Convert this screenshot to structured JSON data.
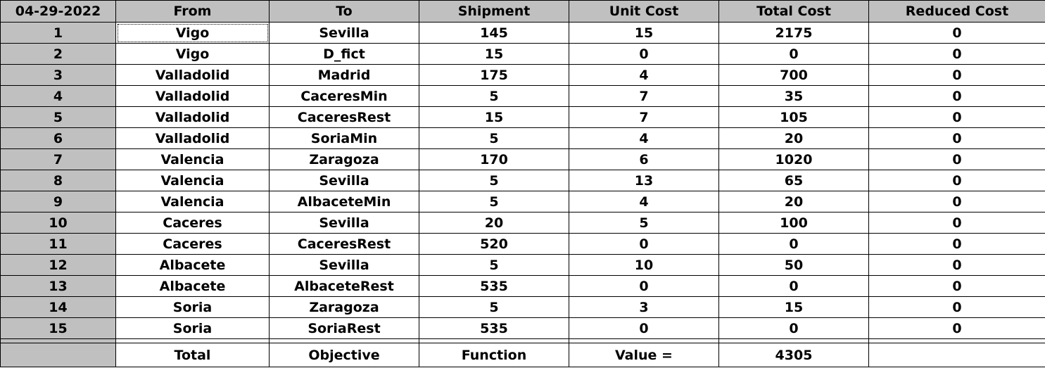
{
  "header": {
    "date": "04-29-2022",
    "columns": [
      "From",
      "To",
      "Shipment",
      "Unit Cost",
      "Total Cost",
      "Reduced Cost"
    ]
  },
  "rows": [
    {
      "num": "1",
      "from": "Vigo",
      "to": "Sevilla",
      "shipment": "145",
      "unit_cost": "15",
      "total_cost": "2175",
      "reduced_cost": "0"
    },
    {
      "num": "2",
      "from": "Vigo",
      "to": "D_fict",
      "shipment": "15",
      "unit_cost": "0",
      "total_cost": "0",
      "reduced_cost": "0"
    },
    {
      "num": "3",
      "from": "Valladolid",
      "to": "Madrid",
      "shipment": "175",
      "unit_cost": "4",
      "total_cost": "700",
      "reduced_cost": "0"
    },
    {
      "num": "4",
      "from": "Valladolid",
      "to": "CaceresMin",
      "shipment": "5",
      "unit_cost": "7",
      "total_cost": "35",
      "reduced_cost": "0"
    },
    {
      "num": "5",
      "from": "Valladolid",
      "to": "CaceresRest",
      "shipment": "15",
      "unit_cost": "7",
      "total_cost": "105",
      "reduced_cost": "0"
    },
    {
      "num": "6",
      "from": "Valladolid",
      "to": "SoriaMin",
      "shipment": "5",
      "unit_cost": "4",
      "total_cost": "20",
      "reduced_cost": "0"
    },
    {
      "num": "7",
      "from": "Valencia",
      "to": "Zaragoza",
      "shipment": "170",
      "unit_cost": "6",
      "total_cost": "1020",
      "reduced_cost": "0"
    },
    {
      "num": "8",
      "from": "Valencia",
      "to": "Sevilla",
      "shipment": "5",
      "unit_cost": "13",
      "total_cost": "65",
      "reduced_cost": "0"
    },
    {
      "num": "9",
      "from": "Valencia",
      "to": "AlbaceteMin",
      "shipment": "5",
      "unit_cost": "4",
      "total_cost": "20",
      "reduced_cost": "0"
    },
    {
      "num": "10",
      "from": "Caceres",
      "to": "Sevilla",
      "shipment": "20",
      "unit_cost": "5",
      "total_cost": "100",
      "reduced_cost": "0"
    },
    {
      "num": "11",
      "from": "Caceres",
      "to": "CaceresRest",
      "shipment": "520",
      "unit_cost": "0",
      "total_cost": "0",
      "reduced_cost": "0"
    },
    {
      "num": "12",
      "from": "Albacete",
      "to": "Sevilla",
      "shipment": "5",
      "unit_cost": "10",
      "total_cost": "50",
      "reduced_cost": "0"
    },
    {
      "num": "13",
      "from": "Albacete",
      "to": "AlbaceteRest",
      "shipment": "535",
      "unit_cost": "0",
      "total_cost": "0",
      "reduced_cost": "0"
    },
    {
      "num": "14",
      "from": "Soria",
      "to": "Zaragoza",
      "shipment": "5",
      "unit_cost": "3",
      "total_cost": "15",
      "reduced_cost": "0"
    },
    {
      "num": "15",
      "from": "Soria",
      "to": "SoriaRest",
      "shipment": "535",
      "unit_cost": "0",
      "total_cost": "0",
      "reduced_cost": "0"
    }
  ],
  "footer": {
    "label1": "Total",
    "label2": "Objective",
    "label3": "Function",
    "label4": "Value =",
    "value": "4305",
    "extra": ""
  }
}
